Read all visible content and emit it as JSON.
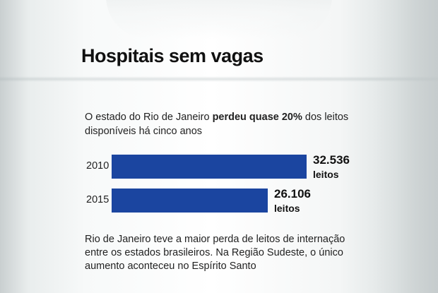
{
  "title": "Hospitais sem vagas",
  "intro": {
    "before": "O estado do Rio de Janeiro ",
    "bold": "perdeu quase 20%",
    "after": " dos leitos disponíveis há cinco anos"
  },
  "note": "Rio de Janeiro teve a maior perda de leitos de internação entre os estados brasileiros. Na Região Sudeste, o único aumento aconteceu no Espírito Santo",
  "colors": {
    "bar": "#1b45a0"
  },
  "chart_data": {
    "type": "bar",
    "orientation": "horizontal",
    "categories": [
      "2010",
      "2015"
    ],
    "values": [
      32536,
      26106
    ],
    "value_labels": [
      "32.536",
      "26.106"
    ],
    "unit_label": "leitos",
    "xlim": [
      0,
      32536
    ]
  }
}
